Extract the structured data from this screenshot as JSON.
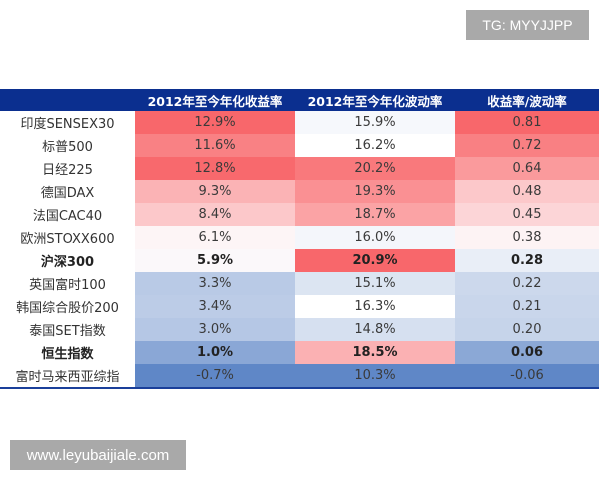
{
  "watermarks": {
    "top_right": "TG: MYYJJPP",
    "bottom_left": "www.leyubaijiale.com"
  },
  "table": {
    "headers": [
      "",
      "2012年至今年化收益率",
      "2012年至今年化波动率",
      "收益率/波动率"
    ],
    "rows": [
      {
        "name": "印度SENSEX30",
        "ret": "12.9%",
        "vol": "15.9%",
        "ratio": "0.81",
        "bold": false,
        "colors": [
          "#f8676b",
          "#f6f8fc",
          "#f8676b"
        ]
      },
      {
        "name": "标普500",
        "ret": "11.6%",
        "vol": "16.2%",
        "ratio": "0.72",
        "bold": false,
        "colors": [
          "#f98184",
          "#ffffff",
          "#f98083"
        ]
      },
      {
        "name": "日经225",
        "ret": "12.8%",
        "vol": "20.2%",
        "ratio": "0.64",
        "bold": false,
        "colors": [
          "#f8696d",
          "#f9797c",
          "#fa9a9c"
        ]
      },
      {
        "name": "德国DAX",
        "ret": "9.3%",
        "vol": "19.3%",
        "ratio": "0.48",
        "bold": false,
        "colors": [
          "#fbb3b5",
          "#fa9093",
          "#fcc8ca"
        ]
      },
      {
        "name": "法国CAC40",
        "ret": "8.4%",
        "vol": "18.7%",
        "ratio": "0.45",
        "bold": false,
        "colors": [
          "#fcc8ca",
          "#fba3a5",
          "#fcd5d7"
        ]
      },
      {
        "name": "欧洲STOXX600",
        "ret": "6.1%",
        "vol": "16.0%",
        "ratio": "0.38",
        "bold": false,
        "colors": [
          "#fdf5f6",
          "#f4f6fb",
          "#fdf3f4"
        ]
      },
      {
        "name": "沪深300",
        "ret": "5.9%",
        "vol": "20.9%",
        "ratio": "0.28",
        "bold": true,
        "colors": [
          "#fbf8fa",
          "#f8676b",
          "#e9eef7"
        ]
      },
      {
        "name": "英国富时100",
        "ret": "3.3%",
        "vol": "15.1%",
        "ratio": "0.22",
        "bold": false,
        "colors": [
          "#b9cae6",
          "#dce5f2",
          "#ccd8ec"
        ]
      },
      {
        "name": "韩国综合股价200",
        "ret": "3.4%",
        "vol": "16.3%",
        "ratio": "0.21",
        "bold": false,
        "colors": [
          "#bccce7",
          "#ffffff",
          "#c9d6eb"
        ]
      },
      {
        "name": "泰国SET指数",
        "ret": "3.0%",
        "vol": "14.8%",
        "ratio": "0.20",
        "bold": false,
        "colors": [
          "#b5c7e5",
          "#d6e0f0",
          "#c6d4ea"
        ]
      },
      {
        "name": "恒生指数",
        "ret": "1.0%",
        "vol": "18.5%",
        "ratio": "0.06",
        "bold": true,
        "colors": [
          "#8aa7d6",
          "#fbb1b3",
          "#8ba8d6"
        ]
      },
      {
        "name": "富时马来西亚综指",
        "ret": "-0.7%",
        "vol": "10.3%",
        "ratio": "-0.06",
        "bold": false,
        "colors": [
          "#5f87c7",
          "#5f87c7",
          "#5f87c7"
        ]
      }
    ]
  }
}
